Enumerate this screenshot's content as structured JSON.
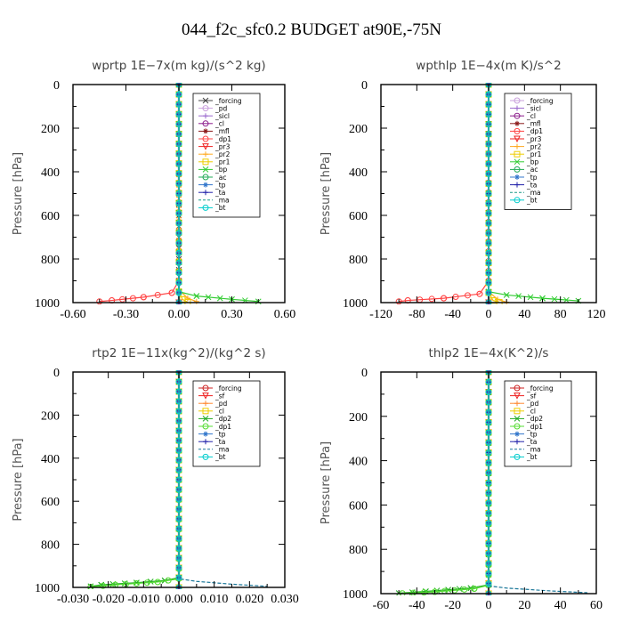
{
  "figure": {
    "title": "044_f2c_sfc0.2  BUDGET at90E,-75N"
  },
  "chart_data": [
    {
      "type": "line",
      "title": "wprtp   1E−7x(m kg)/(s^2 kg)",
      "ylabel": "Pressure [hPa]",
      "xlim": [
        -0.6,
        0.6
      ],
      "ylim": [
        1000,
        0
      ],
      "xticks": [
        -0.6,
        -0.3,
        0.0,
        0.3,
        0.6
      ],
      "xtick_labels": [
        "-0.60",
        "-0.30",
        "0.00",
        "0.30",
        "0.60"
      ],
      "yticks": [
        0,
        200,
        400,
        600,
        800,
        1000
      ],
      "ytick_labels": [
        "0",
        "200",
        "400",
        "600",
        "800",
        "1000"
      ],
      "legend_position": "top-right",
      "series": [
        {
          "name": "_forcing",
          "color": "#444444",
          "marker": "x",
          "x": [
            0,
            0,
            0,
            0
          ],
          "y": [
            0,
            500,
            900,
            1000
          ]
        },
        {
          "name": "_pd",
          "color": "#c9a0dc",
          "marker": "o",
          "x": [
            0,
            0
          ],
          "y": [
            0,
            1000
          ]
        },
        {
          "name": "_sicl",
          "color": "#9966cc",
          "marker": "+",
          "x": [
            0,
            0
          ],
          "y": [
            0,
            1000
          ]
        },
        {
          "name": "_cl",
          "color": "#8b1a8b",
          "marker": "o",
          "x": [
            0,
            0
          ],
          "y": [
            0,
            1000
          ]
        },
        {
          "name": "_mfl",
          "color": "#8b1a1a",
          "marker": "*",
          "x": [
            0,
            0
          ],
          "y": [
            0,
            1000
          ]
        },
        {
          "name": "_dp1",
          "color": "#ff4444",
          "marker": "o",
          "x": [
            0,
            0,
            -0.04,
            -0.2,
            -0.38,
            -0.45
          ],
          "y": [
            0,
            900,
            955,
            975,
            990,
            995
          ]
        },
        {
          "name": "_pr3",
          "color": "#ee2222",
          "marker": "v",
          "x": [
            0,
            0
          ],
          "y": [
            0,
            1000
          ]
        },
        {
          "name": "_pr2",
          "color": "#ffaa22",
          "marker": "+",
          "x": [
            0,
            0,
            0.05,
            0.1
          ],
          "y": [
            0,
            940,
            980,
            995
          ]
        },
        {
          "name": "_pr1",
          "color": "#eecc00",
          "marker": "s",
          "x": [
            0,
            0,
            0.02,
            0.05
          ],
          "y": [
            0,
            950,
            985,
            998
          ]
        },
        {
          "name": "_bp",
          "color": "#33cc33",
          "marker": "x",
          "x": [
            0,
            0,
            0.1,
            0.3,
            0.45
          ],
          "y": [
            0,
            950,
            970,
            985,
            995
          ]
        },
        {
          "name": "_ac",
          "color": "#22aa55",
          "marker": "o",
          "x": [
            0,
            0
          ],
          "y": [
            0,
            1000
          ]
        },
        {
          "name": "_tp",
          "color": "#3377cc",
          "marker": "*",
          "x": [
            0,
            0
          ],
          "y": [
            0,
            1000
          ]
        },
        {
          "name": "_ta",
          "color": "#2222aa",
          "marker": "+",
          "x": [
            0,
            0
          ],
          "y": [
            0,
            1000
          ]
        },
        {
          "name": "_ma",
          "color": "#1a9988",
          "marker": "-",
          "x": [
            0,
            0
          ],
          "y": [
            0,
            1000
          ]
        },
        {
          "name": "_bt",
          "color": "#00cccc",
          "marker": "o",
          "x": [
            0,
            0
          ],
          "y": [
            0,
            1000
          ]
        }
      ]
    },
    {
      "type": "line",
      "title": "wpthlp   1E−4x(m K)/s^2",
      "ylabel": "Pressure [hPa]",
      "xlim": [
        -120,
        120
      ],
      "ylim": [
        1000,
        0
      ],
      "xticks": [
        -120,
        -80,
        -40,
        0,
        40,
        80,
        120
      ],
      "xtick_labels": [
        "-120",
        "-80",
        "-40",
        "0",
        "40",
        "80",
        "120"
      ],
      "yticks": [
        0,
        200,
        400,
        600,
        800,
        1000
      ],
      "ytick_labels": [
        "0",
        "200",
        "400",
        "600",
        "800",
        "1000"
      ],
      "legend_position": "top-right",
      "series": [
        {
          "name": "_forcing",
          "color": "#c9a0dc",
          "marker": "o",
          "x": [
            0,
            0
          ],
          "y": [
            0,
            1000
          ]
        },
        {
          "name": "_sicl",
          "color": "#9966cc",
          "marker": "+",
          "x": [
            0,
            0
          ],
          "y": [
            0,
            1000
          ]
        },
        {
          "name": "_cl",
          "color": "#8b1a8b",
          "marker": "o",
          "x": [
            0,
            0
          ],
          "y": [
            0,
            1000
          ]
        },
        {
          "name": "_mfl",
          "color": "#8b1a1a",
          "marker": "*",
          "x": [
            0,
            0
          ],
          "y": [
            0,
            1000
          ]
        },
        {
          "name": "_dp1",
          "color": "#ff4444",
          "marker": "o",
          "x": [
            0,
            0,
            -10,
            -50,
            -90,
            -100
          ],
          "y": [
            0,
            900,
            960,
            980,
            990,
            995
          ]
        },
        {
          "name": "_pr3",
          "color": "#ee2222",
          "marker": "v",
          "x": [
            0,
            0
          ],
          "y": [
            0,
            1000
          ]
        },
        {
          "name": "_pr2",
          "color": "#ffaa22",
          "marker": "+",
          "x": [
            0,
            0,
            10,
            20
          ],
          "y": [
            0,
            950,
            985,
            998
          ]
        },
        {
          "name": "_pr1",
          "color": "#eecc00",
          "marker": "s",
          "x": [
            0,
            0,
            5,
            12
          ],
          "y": [
            0,
            955,
            990,
            998
          ]
        },
        {
          "name": "_bp",
          "color": "#33cc33",
          "marker": "x",
          "x": [
            0,
            0,
            20,
            60,
            100
          ],
          "y": [
            0,
            950,
            965,
            980,
            992
          ]
        },
        {
          "name": "_ac",
          "color": "#22aa55",
          "marker": "o",
          "x": [
            0,
            0
          ],
          "y": [
            0,
            1000
          ]
        },
        {
          "name": "_tp",
          "color": "#3377cc",
          "marker": "*",
          "x": [
            0,
            0
          ],
          "y": [
            0,
            1000
          ]
        },
        {
          "name": "_ta",
          "color": "#2222aa",
          "marker": "+",
          "x": [
            0,
            0
          ],
          "y": [
            0,
            1000
          ]
        },
        {
          "name": "_ma",
          "color": "#1a9988",
          "marker": "-",
          "x": [
            0,
            0
          ],
          "y": [
            0,
            1000
          ]
        },
        {
          "name": "_bt",
          "color": "#00cccc",
          "marker": "o",
          "x": [
            0,
            0
          ],
          "y": [
            0,
            1000
          ]
        }
      ]
    },
    {
      "type": "line",
      "title": "rtp2   1E−11x(kg^2)/(kg^2 s)",
      "ylabel": "Pressure [hPa]",
      "xlim": [
        -0.03,
        0.03
      ],
      "ylim": [
        1000,
        0
      ],
      "xticks": [
        -0.03,
        -0.02,
        -0.01,
        0.0,
        0.01,
        0.02,
        0.03
      ],
      "xtick_labels": [
        "-0.030",
        "-0.020",
        "-0.010",
        "0.000",
        "0.010",
        "0.020",
        "0.030"
      ],
      "yticks": [
        0,
        200,
        400,
        600,
        800,
        1000
      ],
      "ytick_labels": [
        "0",
        "200",
        "400",
        "600",
        "800",
        "1000"
      ],
      "legend_position": "top-right",
      "series": [
        {
          "name": "_forcing",
          "color": "#cc2222",
          "marker": "o",
          "x": [
            0,
            0
          ],
          "y": [
            0,
            1000
          ]
        },
        {
          "name": "_sf",
          "color": "#ee2222",
          "marker": "v",
          "x": [
            0,
            0
          ],
          "y": [
            0,
            1000
          ]
        },
        {
          "name": "_pd",
          "color": "#ff8833",
          "marker": "+",
          "x": [
            0,
            0
          ],
          "y": [
            0,
            1000
          ]
        },
        {
          "name": "_cl",
          "color": "#eecc00",
          "marker": "s",
          "x": [
            0,
            0
          ],
          "y": [
            0,
            1000
          ]
        },
        {
          "name": "_dp2",
          "color": "#22aa22",
          "marker": "x",
          "x": [
            0,
            0,
            -0.004,
            -0.012,
            -0.022,
            -0.025
          ],
          "y": [
            0,
            955,
            968,
            978,
            988,
            995
          ]
        },
        {
          "name": "_dp1",
          "color": "#55dd33",
          "marker": "o",
          "x": [
            0,
            0,
            -0.006,
            -0.018,
            -0.025
          ],
          "y": [
            0,
            960,
            975,
            988,
            998
          ]
        },
        {
          "name": "_tp",
          "color": "#3377cc",
          "marker": "*",
          "x": [
            0,
            0
          ],
          "y": [
            0,
            1000
          ]
        },
        {
          "name": "_ta",
          "color": "#2222aa",
          "marker": "+",
          "x": [
            0,
            0
          ],
          "y": [
            0,
            1000
          ]
        },
        {
          "name": "_ma",
          "color": "#1a7799",
          "marker": "-",
          "x": [
            0,
            0,
            0.005,
            0.015,
            0.025
          ],
          "y": [
            0,
            960,
            972,
            985,
            995
          ]
        },
        {
          "name": "_bt",
          "color": "#00cccc",
          "marker": "o",
          "x": [
            0,
            0
          ],
          "y": [
            0,
            1000
          ]
        }
      ]
    },
    {
      "type": "line",
      "title": "thlp2   1E−4x(K^2)/s",
      "ylabel": "Pressure [hPa]",
      "xlim": [
        -60,
        60
      ],
      "ylim": [
        1000,
        0
      ],
      "xticks": [
        -60,
        -40,
        -20,
        0,
        20,
        40,
        60
      ],
      "xtick_labels": [
        "-60",
        "-40",
        "-20",
        "0",
        "20",
        "40",
        "60"
      ],
      "yticks": [
        0,
        200,
        400,
        600,
        800,
        1000
      ],
      "ytick_labels": [
        "0",
        "200",
        "400",
        "600",
        "800",
        "1000"
      ],
      "legend_position": "top-right",
      "series": [
        {
          "name": "_forcing",
          "color": "#cc2222",
          "marker": "o",
          "x": [
            0,
            0
          ],
          "y": [
            0,
            1000
          ]
        },
        {
          "name": "_sf",
          "color": "#ee2222",
          "marker": "v",
          "x": [
            0,
            0
          ],
          "y": [
            0,
            1000
          ]
        },
        {
          "name": "_pd",
          "color": "#ff8833",
          "marker": "+",
          "x": [
            0,
            0
          ],
          "y": [
            0,
            1000
          ]
        },
        {
          "name": "_cl",
          "color": "#eecc00",
          "marker": "s",
          "x": [
            0,
            0
          ],
          "y": [
            0,
            1000
          ]
        },
        {
          "name": "_dp2",
          "color": "#22aa22",
          "marker": "x",
          "x": [
            0,
            0,
            -10,
            -35,
            -50
          ],
          "y": [
            0,
            960,
            975,
            990,
            998
          ]
        },
        {
          "name": "_dp1",
          "color": "#55dd33",
          "marker": "o",
          "x": [
            0,
            0,
            -8,
            -30,
            -48
          ],
          "y": [
            0,
            962,
            978,
            992,
            999
          ]
        },
        {
          "name": "_tp",
          "color": "#3377cc",
          "marker": "*",
          "x": [
            0,
            0
          ],
          "y": [
            0,
            1000
          ]
        },
        {
          "name": "_ta",
          "color": "#2222aa",
          "marker": "+",
          "x": [
            0,
            0
          ],
          "y": [
            0,
            1000
          ]
        },
        {
          "name": "_ma",
          "color": "#1a7799",
          "marker": "-",
          "x": [
            0,
            0,
            10,
            35,
            55
          ],
          "y": [
            0,
            965,
            975,
            988,
            996
          ]
        },
        {
          "name": "_bt",
          "color": "#00cccc",
          "marker": "o",
          "x": [
            0,
            0
          ],
          "y": [
            0,
            1000
          ]
        }
      ]
    }
  ]
}
